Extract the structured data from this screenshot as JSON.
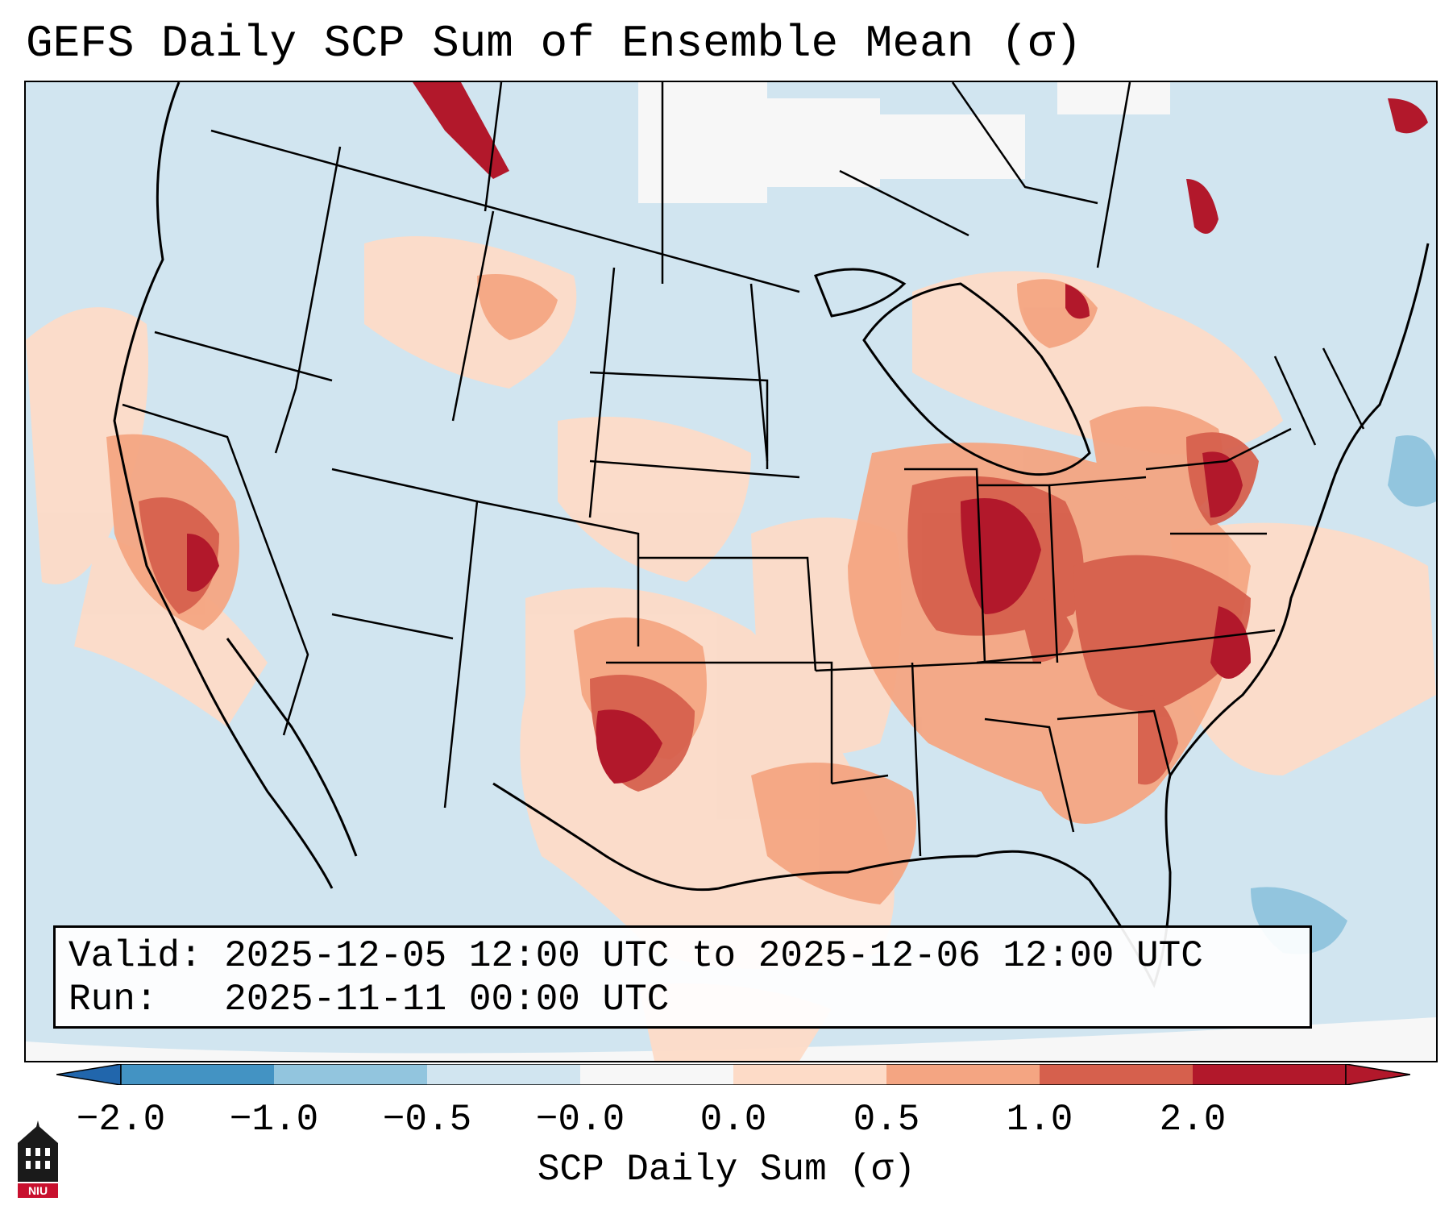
{
  "title": "GEFS Daily SCP Sum of Ensemble Mean (σ)",
  "valid_line": "Valid: 2025-12-05 12:00 UTC to 2025-12-06 12:00 UTC",
  "run_line": "Run:   2025-11-11 00:00 UTC",
  "colorbar": {
    "label": "SCP Daily Sum (σ)",
    "ticks": [
      "−2.0",
      "−1.0",
      "−0.5",
      "−0.0",
      "0.0",
      "0.5",
      "1.0",
      "2.0"
    ],
    "colors": [
      "#4393c3",
      "#92c5de",
      "#d1e5f0",
      "#f7f7f7",
      "#fddbc7",
      "#f4a582",
      "#d6604d",
      "#b2182b"
    ],
    "extend_low_color": "#2166ac",
    "extend_high_color": "#b2182b"
  },
  "logo": {
    "text": "NIU",
    "color": "#c8102e"
  },
  "map": {
    "region": "Continental United States",
    "background_color": "#d1e5f0",
    "field": "SCP daily sum anomaly",
    "highlights": [
      "Ohio Valley / Indiana: 1.0 to 2.0",
      "Carolinas and Mid-Atlantic: 1.0 to 2.0",
      "Southern Plains (western Oklahoma / north Texas): 1.0 to 2.0",
      "Central California: 1.0 to 2.0",
      "Gulf Coast: 0.0 to 0.5"
    ]
  }
}
